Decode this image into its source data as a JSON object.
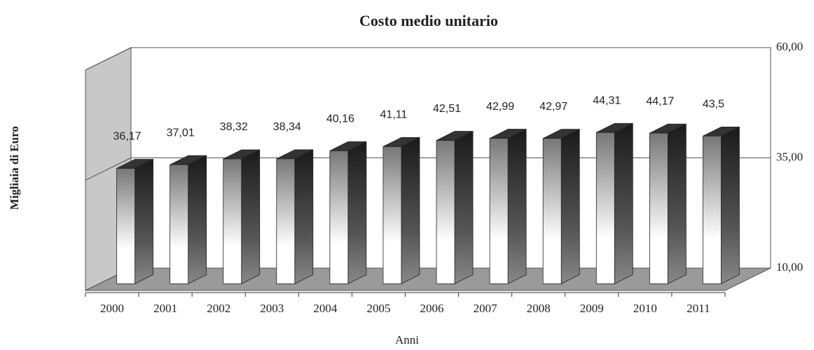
{
  "chart_data": {
    "type": "bar3d",
    "title": "Costo medio unitario",
    "x_label": "Anni",
    "y_label": "Migliaia di Euro",
    "categories": [
      "2000",
      "2001",
      "2002",
      "2003",
      "2004",
      "2005",
      "2006",
      "2007",
      "2008",
      "2009",
      "2010",
      "2011"
    ],
    "values": [
      36.17,
      37.01,
      38.32,
      38.34,
      40.16,
      41.11,
      42.51,
      42.99,
      42.97,
      44.31,
      44.17,
      43.5
    ],
    "value_labels": [
      "36,17",
      "37,01",
      "38,32",
      "38,34",
      "40,16",
      "41,11",
      "42,51",
      "42,99",
      "42,97",
      "44,31",
      "44,17",
      "43,5"
    ],
    "ylim": [
      10,
      60
    ],
    "yticks": [
      {
        "value": 10,
        "label": "10,00"
      },
      {
        "value": 35,
        "label": "35,00"
      },
      {
        "value": 60,
        "label": "60,00"
      }
    ],
    "grid": true
  }
}
